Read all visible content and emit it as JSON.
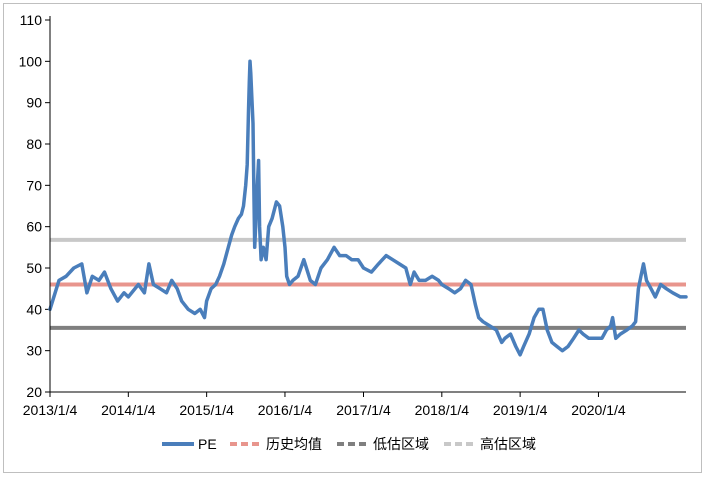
{
  "chart_data": {
    "type": "line",
    "title": "",
    "xlabel": "",
    "ylabel": "",
    "ylim": [
      20,
      110
    ],
    "y_ticks": [
      "20",
      "30",
      "40",
      "50",
      "60",
      "70",
      "80",
      "90",
      "100",
      "110"
    ],
    "x_ticks": [
      "2013/1/4",
      "2014/1/4",
      "2015/1/4",
      "2016/1/4",
      "2017/1/4",
      "2018/1/4",
      "2019/1/4",
      "2020/1/4"
    ],
    "xlim": [
      "2013-01-04",
      "2021-02-15"
    ],
    "grid": false,
    "legend_position": "bottom",
    "series": [
      {
        "name": "PE",
        "style": "solid",
        "color": "#4a7ebb",
        "points": [
          [
            "2013-01-04",
            40
          ],
          [
            "2013-02-15",
            47
          ],
          [
            "2013-03-20",
            48
          ],
          [
            "2013-04-25",
            50
          ],
          [
            "2013-06-01",
            51
          ],
          [
            "2013-06-25",
            44
          ],
          [
            "2013-07-20",
            48
          ],
          [
            "2013-08-20",
            47
          ],
          [
            "2013-09-15",
            49
          ],
          [
            "2013-10-15",
            45
          ],
          [
            "2013-11-15",
            42
          ],
          [
            "2013-12-15",
            44
          ],
          [
            "2014-01-04",
            43
          ],
          [
            "2014-02-20",
            46
          ],
          [
            "2014-03-20",
            44
          ],
          [
            "2014-04-10",
            51
          ],
          [
            "2014-05-01",
            46
          ],
          [
            "2014-06-01",
            45
          ],
          [
            "2014-07-01",
            44
          ],
          [
            "2014-07-25",
            47
          ],
          [
            "2014-08-20",
            45
          ],
          [
            "2014-09-10",
            42
          ],
          [
            "2014-10-10",
            40
          ],
          [
            "2014-11-10",
            39
          ],
          [
            "2014-12-05",
            40
          ],
          [
            "2014-12-25",
            38
          ],
          [
            "2015-01-04",
            42
          ],
          [
            "2015-01-25",
            45
          ],
          [
            "2015-02-15",
            46
          ],
          [
            "2015-03-05",
            48
          ],
          [
            "2015-03-25",
            51
          ],
          [
            "2015-04-15",
            55
          ],
          [
            "2015-05-01",
            58
          ],
          [
            "2015-05-15",
            60
          ],
          [
            "2015-06-01",
            62
          ],
          [
            "2015-06-15",
            63
          ],
          [
            "2015-06-25",
            65
          ],
          [
            "2015-07-05",
            70
          ],
          [
            "2015-07-12",
            75
          ],
          [
            "2015-07-18",
            88
          ],
          [
            "2015-07-22",
            95
          ],
          [
            "2015-07-25",
            100
          ],
          [
            "2015-07-29",
            97
          ],
          [
            "2015-08-02",
            92
          ],
          [
            "2015-08-08",
            85
          ],
          [
            "2015-08-12",
            70
          ],
          [
            "2015-08-16",
            55
          ],
          [
            "2015-08-22",
            62
          ],
          [
            "2015-08-28",
            70
          ],
          [
            "2015-09-03",
            76
          ],
          [
            "2015-09-08",
            60
          ],
          [
            "2015-09-15",
            52
          ],
          [
            "2015-09-25",
            55
          ],
          [
            "2015-10-08",
            52
          ],
          [
            "2015-10-20",
            60
          ],
          [
            "2015-11-05",
            62
          ],
          [
            "2015-11-25",
            66
          ],
          [
            "2015-12-10",
            65
          ],
          [
            "2015-12-25",
            60
          ],
          [
            "2016-01-04",
            55
          ],
          [
            "2016-01-12",
            48
          ],
          [
            "2016-01-25",
            46
          ],
          [
            "2016-02-10",
            47
          ],
          [
            "2016-03-05",
            48
          ],
          [
            "2016-04-01",
            52
          ],
          [
            "2016-05-01",
            47
          ],
          [
            "2016-05-25",
            46
          ],
          [
            "2016-06-20",
            50
          ],
          [
            "2016-07-20",
            52
          ],
          [
            "2016-08-20",
            55
          ],
          [
            "2016-09-15",
            53
          ],
          [
            "2016-10-15",
            53
          ],
          [
            "2016-11-10",
            52
          ],
          [
            "2016-12-10",
            52
          ],
          [
            "2017-01-04",
            50
          ],
          [
            "2017-02-10",
            49
          ],
          [
            "2017-03-15",
            51
          ],
          [
            "2017-04-20",
            53
          ],
          [
            "2017-05-20",
            52
          ],
          [
            "2017-06-20",
            51
          ],
          [
            "2017-07-20",
            50
          ],
          [
            "2017-08-10",
            46
          ],
          [
            "2017-08-28",
            49
          ],
          [
            "2017-09-20",
            47
          ],
          [
            "2017-10-20",
            47
          ],
          [
            "2017-11-20",
            48
          ],
          [
            "2017-12-20",
            47
          ],
          [
            "2018-01-04",
            46
          ],
          [
            "2018-02-05",
            45
          ],
          [
            "2018-03-05",
            44
          ],
          [
            "2018-04-01",
            45
          ],
          [
            "2018-04-25",
            47
          ],
          [
            "2018-05-20",
            46
          ],
          [
            "2018-06-10",
            41
          ],
          [
            "2018-06-25",
            38
          ],
          [
            "2018-07-15",
            37
          ],
          [
            "2018-08-15",
            36
          ],
          [
            "2018-09-15",
            35
          ],
          [
            "2018-10-10",
            32
          ],
          [
            "2018-10-25",
            33
          ],
          [
            "2018-11-20",
            34
          ],
          [
            "2018-12-15",
            31
          ],
          [
            "2019-01-04",
            29
          ],
          [
            "2019-01-20",
            31
          ],
          [
            "2019-02-15",
            34
          ],
          [
            "2019-03-10",
            38
          ],
          [
            "2019-04-01",
            40
          ],
          [
            "2019-04-20",
            40
          ],
          [
            "2019-05-10",
            35
          ],
          [
            "2019-06-01",
            32
          ],
          [
            "2019-06-25",
            31
          ],
          [
            "2019-07-20",
            30
          ],
          [
            "2019-08-15",
            31
          ],
          [
            "2019-09-10",
            33
          ],
          [
            "2019-10-05",
            35
          ],
          [
            "2019-10-25",
            34
          ],
          [
            "2019-11-20",
            33
          ],
          [
            "2019-12-20",
            33
          ],
          [
            "2020-01-04",
            33
          ],
          [
            "2020-01-20",
            33
          ],
          [
            "2020-02-10",
            35
          ],
          [
            "2020-03-01",
            36
          ],
          [
            "2020-03-10",
            38
          ],
          [
            "2020-03-25",
            33
          ],
          [
            "2020-04-15",
            34
          ],
          [
            "2020-05-15",
            35
          ],
          [
            "2020-06-10",
            36
          ],
          [
            "2020-06-25",
            37
          ],
          [
            "2020-07-08",
            45
          ],
          [
            "2020-07-20",
            48
          ],
          [
            "2020-08-01",
            51
          ],
          [
            "2020-08-15",
            47
          ],
          [
            "2020-09-05",
            45
          ],
          [
            "2020-09-25",
            43
          ],
          [
            "2020-10-20",
            46
          ],
          [
            "2020-11-15",
            45
          ],
          [
            "2020-12-15",
            44
          ],
          [
            "2021-01-20",
            43
          ],
          [
            "2021-02-15",
            43
          ]
        ]
      },
      {
        "name": "历史均值",
        "style": "dashed",
        "color": "#e8958d",
        "value": 46
      },
      {
        "name": "低估区域",
        "style": "dashed",
        "color": "#7f7f7f",
        "value": 35.5
      },
      {
        "name": "高估区域",
        "style": "dashed",
        "color": "#c8c8c8",
        "value": 56.8
      }
    ]
  }
}
